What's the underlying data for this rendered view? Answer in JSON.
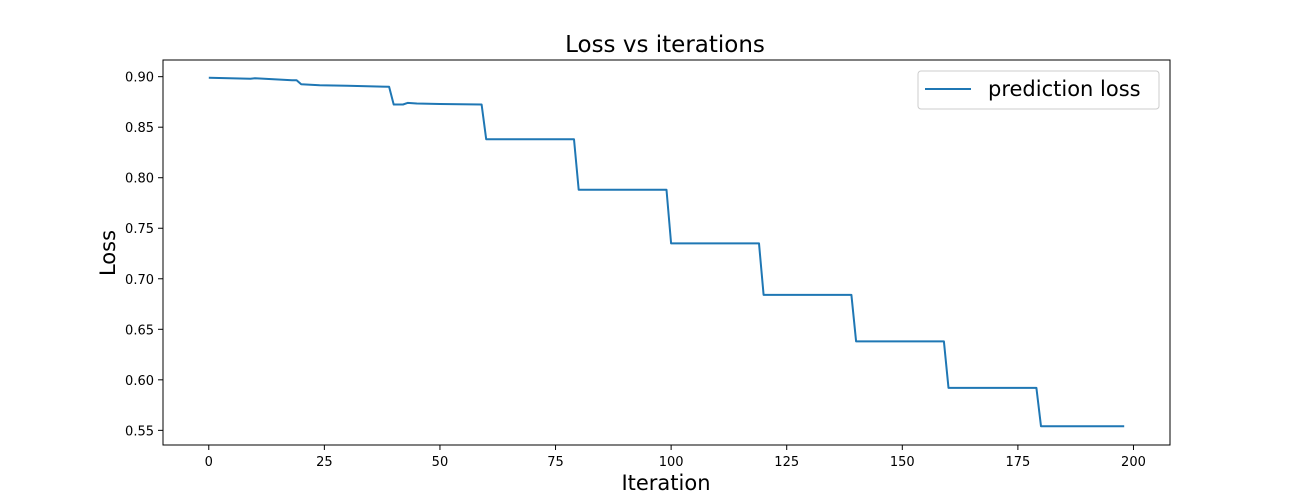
{
  "chart_data": {
    "type": "line",
    "title": "Loss vs iterations",
    "xlabel": "Iteration",
    "ylabel": "Loss",
    "xlim": [
      -9.9,
      207.9
    ],
    "ylim": [
      0.5355,
      0.9165
    ],
    "xticks": [
      0,
      25,
      50,
      75,
      100,
      125,
      150,
      175,
      200
    ],
    "yticks": [
      0.55,
      0.6,
      0.65,
      0.7,
      0.75,
      0.8,
      0.85,
      0.9
    ],
    "xtick_labels": [
      "0",
      "25",
      "50",
      "75",
      "100",
      "125",
      "150",
      "175",
      "200"
    ],
    "ytick_labels": [
      "0.55",
      "0.60",
      "0.65",
      "0.70",
      "0.75",
      "0.80",
      "0.85",
      "0.90"
    ],
    "grid": false,
    "legend_position": "top-right",
    "series": [
      {
        "name": "prediction loss",
        "color": "#1f77b4",
        "x": [
          0,
          9,
          10,
          12,
          18,
          19,
          20,
          24,
          30,
          39,
          40,
          42,
          43,
          45,
          50,
          59,
          60,
          79,
          80,
          99,
          100,
          119,
          120,
          139,
          140,
          159,
          160,
          179,
          180,
          198
        ],
        "y": [
          0.899,
          0.898,
          0.8985,
          0.898,
          0.8965,
          0.8965,
          0.8925,
          0.8915,
          0.891,
          0.89,
          0.8725,
          0.8725,
          0.874,
          0.8735,
          0.873,
          0.8725,
          0.838,
          0.838,
          0.788,
          0.788,
          0.735,
          0.735,
          0.684,
          0.684,
          0.638,
          0.638,
          0.592,
          0.592,
          0.554,
          0.554
        ]
      }
    ]
  }
}
